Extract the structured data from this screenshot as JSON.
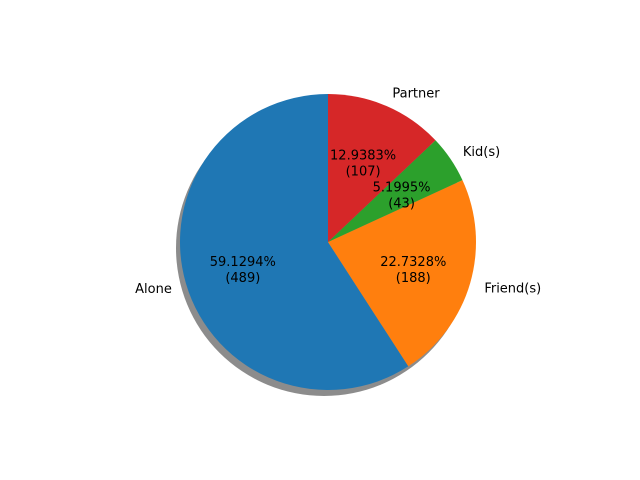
{
  "chart_data": {
    "type": "pie",
    "title": "",
    "start_angle_deg": 90,
    "direction": "counterclockwise",
    "shadow": true,
    "slices": [
      {
        "label": "Alone",
        "value": 489,
        "percent_label": "59.1294%",
        "count_label": "(489)",
        "color": "#1f77b4"
      },
      {
        "label": "Friend(s)",
        "value": 188,
        "percent_label": "22.7328%",
        "count_label": "(188)",
        "color": "#ff7f0e"
      },
      {
        "label": "Kid(s)",
        "value": 43,
        "percent_label": "5.1995%",
        "count_label": "(43)",
        "color": "#2ca02c"
      },
      {
        "label": "Partner",
        "value": 107,
        "percent_label": "12.9383%",
        "count_label": "(107)",
        "color": "#d62728"
      }
    ]
  }
}
